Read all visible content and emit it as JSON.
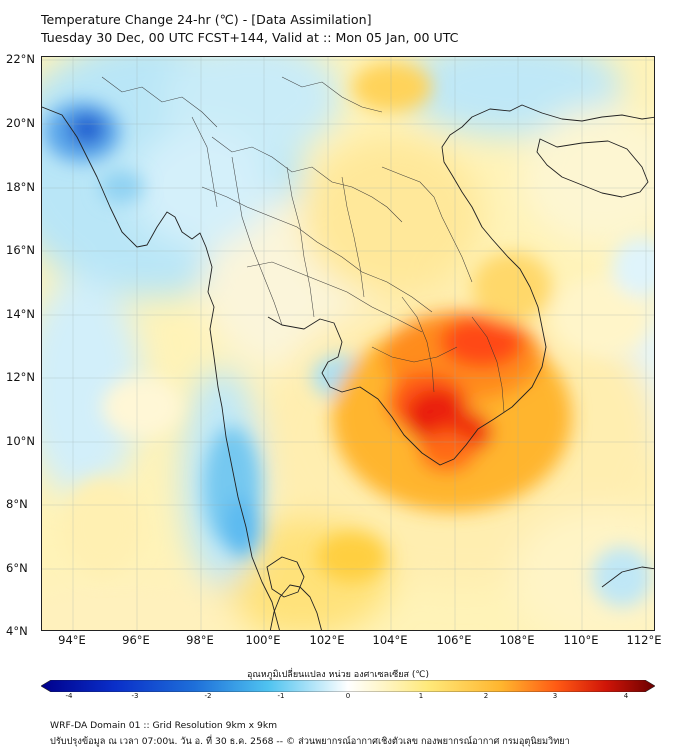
{
  "header": {
    "title_line1": "Temperature Change 24-hr (℃) - [Data Assimilation]",
    "title_line2": "Tuesday 30 Dec, 00 UTC FCST+144, Valid at :: Mon 05 Jan, 00 UTC"
  },
  "map": {
    "lat_labels": [
      "22°N",
      "20°N",
      "18°N",
      "16°N",
      "14°N",
      "12°N",
      "10°N",
      "8°N",
      "6°N",
      "4°N"
    ],
    "lon_labels": [
      "94°E",
      "96°E",
      "98°E",
      "100°E",
      "102°E",
      "104°E",
      "106°E",
      "108°E",
      "110°E",
      "112°E"
    ],
    "lat_range": [
      4,
      22
    ],
    "lon_range": [
      93,
      112.3
    ],
    "field_description_values": {
      "cold_core_lon_lat": [
        94.2,
        20.0
      ],
      "warm_core_lon_lat": [
        105.5,
        11.0
      ]
    }
  },
  "colorbar": {
    "title": "อุณหภูมิเปลี่ยนแปลง หน่วย องศาเซลเซียส (℃)",
    "ticks": [
      "-4",
      "-3",
      "-2",
      "-1",
      "0",
      "1",
      "2",
      "3",
      "4"
    ],
    "range": [
      -4,
      4
    ],
    "colors": {
      "cold_extreme": "#00008b",
      "cold": "#1e6fd9",
      "cool": "#4fc3f0",
      "near_zero": "#ffffff",
      "warm": "#ffe97a",
      "hot": "#ff8a00",
      "hot_extreme": "#6b0000"
    }
  },
  "footer": {
    "line1": "WRF-DA Domain 01 :: Grid Resolution 9km x 9km",
    "line2": "ปรับปรุงข้อมูล ณ เวลา 07:00น. วัน อ. ที่ 30 ธ.ค. 2568 -- © ส่วนพยากรณ์อากาศเชิงตัวเลข กองพยากรณ์อากาศ กรมอุตุนิยมวิทยา"
  }
}
